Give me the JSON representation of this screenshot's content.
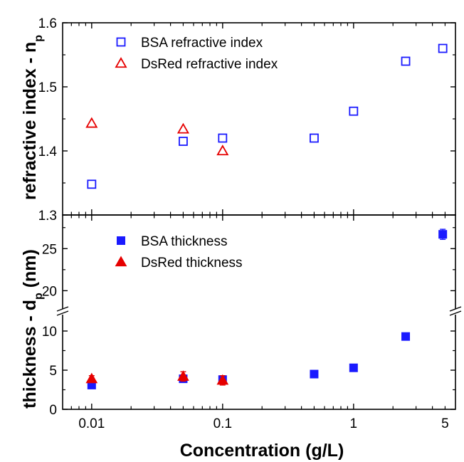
{
  "chart_data": [
    {
      "type": "scatter",
      "panel": "top",
      "ylabel_main": "refractive index - n",
      "ylabel_sub": "p",
      "ylim": [
        1.3,
        1.6
      ],
      "yticks": [
        "1.3",
        "1.4",
        "1.5",
        "1.6"
      ],
      "xscale": "log",
      "xlim": [
        0.006,
        6
      ],
      "legend_position": "top-left",
      "series": [
        {
          "name": "BSA refractive index",
          "marker": "open-square",
          "color": "#1a1aff",
          "points": [
            [
              0.01,
              1.348
            ],
            [
              0.05,
              1.415
            ],
            [
              0.1,
              1.42
            ],
            [
              0.5,
              1.42
            ],
            [
              1,
              1.462
            ],
            [
              2.5,
              1.54
            ],
            [
              4.8,
              1.56
            ]
          ]
        },
        {
          "name": "DsRed refractive index",
          "marker": "open-triangle",
          "color": "#e60000",
          "points": [
            [
              0.01,
              1.443
            ],
            [
              0.05,
              1.434
            ],
            [
              0.1,
              1.4
            ]
          ]
        }
      ]
    },
    {
      "type": "scatter",
      "panel": "bottom",
      "ylabel_main": "thickness - d",
      "ylabel_sub": "p",
      "ylabel_unit": " (nm)",
      "ybreak": [
        12,
        18
      ],
      "yticks": [
        "0",
        "5",
        "10",
        "20",
        "25"
      ],
      "xscale": "log",
      "xlim": [
        0.006,
        6
      ],
      "xlabel": "Concentration (g/L)",
      "xticks": [
        "0.01",
        "0.1",
        "1",
        "5"
      ],
      "legend_position": "top-left",
      "series": [
        {
          "name": "BSA thickness",
          "marker": "filled-square",
          "color": "#1a1aff",
          "points": [
            [
              0.01,
              3.1
            ],
            [
              0.05,
              3.9
            ],
            [
              0.1,
              3.8
            ],
            [
              0.5,
              4.5
            ],
            [
              1,
              5.3
            ],
            [
              2.5,
              9.3
            ],
            [
              4.8,
              26.7
            ]
          ],
          "errors": [
            0.2,
            0.3,
            0.3,
            0.2,
            0.2,
            0.3,
            0.6
          ]
        },
        {
          "name": "DsRed thickness",
          "marker": "filled-triangle",
          "color": "#e60000",
          "points": [
            [
              0.01,
              3.9
            ],
            [
              0.05,
              4.2
            ],
            [
              0.1,
              3.7
            ]
          ],
          "errors": [
            0.4,
            0.6,
            0.6
          ]
        }
      ]
    }
  ]
}
